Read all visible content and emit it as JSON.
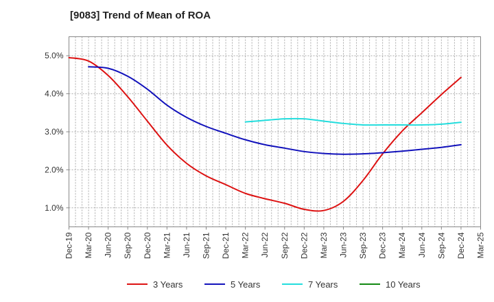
{
  "chart_data": {
    "type": "line",
    "title": "[9083]  Trend of Mean of ROA",
    "xlabel": "",
    "ylabel": "",
    "categories": [
      "Dec-19",
      "Mar-20",
      "Jun-20",
      "Sep-20",
      "Dec-20",
      "Mar-21",
      "Jun-21",
      "Sep-21",
      "Dec-21",
      "Mar-22",
      "Jun-22",
      "Sep-22",
      "Dec-22",
      "Mar-23",
      "Jun-23",
      "Sep-23",
      "Dec-23",
      "Mar-24",
      "Jun-24",
      "Sep-24",
      "Dec-24",
      "Mar-25"
    ],
    "ylim": [
      0.5,
      5.5
    ],
    "yticks": [
      1.0,
      2.0,
      3.0,
      4.0,
      5.0
    ],
    "ytick_labels": [
      "1.0%",
      "2.0%",
      "3.0%",
      "4.0%",
      "5.0%"
    ],
    "grid": true,
    "legend_position": "bottom",
    "series": [
      {
        "name": "3 Years",
        "color": "#dd1111",
        "values": [
          4.95,
          4.86,
          4.48,
          3.92,
          3.28,
          2.65,
          2.17,
          1.84,
          1.61,
          1.38,
          1.24,
          1.12,
          0.96,
          0.93,
          1.17,
          1.72,
          2.42,
          3.02,
          3.5,
          3.98,
          4.43,
          null
        ]
      },
      {
        "name": "5 Years",
        "color": "#1111bb",
        "values": [
          null,
          4.71,
          4.67,
          4.46,
          4.12,
          3.7,
          3.38,
          3.14,
          2.96,
          2.79,
          2.66,
          2.57,
          2.48,
          2.43,
          2.41,
          2.42,
          2.45,
          2.49,
          2.54,
          2.59,
          2.66,
          null
        ]
      },
      {
        "name": "7 Years",
        "color": "#22dddd",
        "values": [
          null,
          null,
          null,
          null,
          null,
          null,
          null,
          null,
          null,
          3.26,
          3.3,
          3.34,
          3.34,
          3.28,
          3.22,
          3.18,
          3.18,
          3.18,
          3.18,
          3.2,
          3.25,
          null
        ]
      },
      {
        "name": "10 Years",
        "color": "#118811",
        "values": [
          null,
          null,
          null,
          null,
          null,
          null,
          null,
          null,
          null,
          null,
          null,
          null,
          null,
          null,
          null,
          null,
          null,
          null,
          null,
          null,
          null,
          null
        ]
      }
    ]
  }
}
